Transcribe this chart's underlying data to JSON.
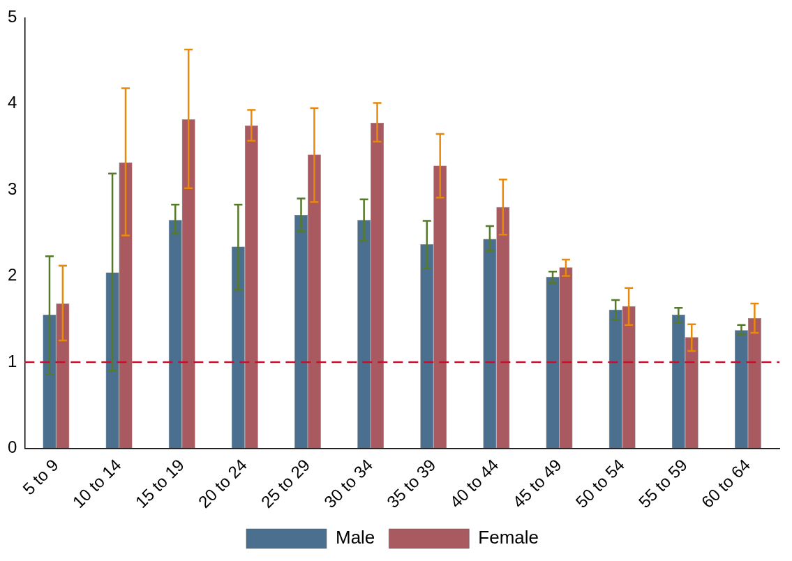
{
  "chart_data": {
    "type": "bar",
    "categories": [
      "5 to 9",
      "10 to 14",
      "15 to 19",
      "20 to 24",
      "25 to 29",
      "30 to 34",
      "35 to 39",
      "40 to 44",
      "45 to 49",
      "50 to 54",
      "55 to 59",
      "60 to 64"
    ],
    "series": [
      {
        "name": "Male",
        "color": "#4a6f8f",
        "values": [
          1.55,
          2.04,
          2.65,
          2.34,
          2.71,
          2.65,
          2.37,
          2.43,
          1.99,
          1.61,
          1.55,
          1.37
        ],
        "errors": [
          [
            0.86,
            2.23
          ],
          [
            0.9,
            3.19
          ],
          [
            2.49,
            2.83
          ],
          [
            1.84,
            2.83
          ],
          [
            2.52,
            2.9
          ],
          [
            2.41,
            2.89
          ],
          [
            2.09,
            2.64
          ],
          [
            2.29,
            2.58
          ],
          [
            1.92,
            2.05
          ],
          [
            1.49,
            1.72
          ],
          [
            1.46,
            1.63
          ],
          [
            1.32,
            1.43
          ]
        ]
      },
      {
        "name": "Female",
        "color": "#a85a60",
        "values": [
          1.68,
          3.32,
          3.82,
          3.75,
          3.41,
          3.78,
          3.28,
          2.8,
          2.1,
          1.65,
          1.29,
          1.51
        ],
        "errors": [
          [
            1.25,
            2.12
          ],
          [
            2.47,
            4.18
          ],
          [
            3.02,
            4.63
          ],
          [
            3.57,
            3.93
          ],
          [
            2.86,
            3.95
          ],
          [
            3.56,
            4.01
          ],
          [
            2.91,
            3.65
          ],
          [
            2.48,
            3.12
          ],
          [
            2.0,
            2.19
          ],
          [
            1.43,
            1.86
          ],
          [
            1.13,
            1.44
          ],
          [
            1.34,
            1.68
          ]
        ]
      }
    ],
    "ylim": [
      0,
      5
    ],
    "yticks": [
      0,
      1,
      2,
      3,
      4,
      5
    ],
    "grid": false,
    "legend": "bottom",
    "ref_lines": [
      {
        "axis": "y",
        "value": 1,
        "color": "#c8102e",
        "line_style": "dashed"
      }
    ]
  }
}
